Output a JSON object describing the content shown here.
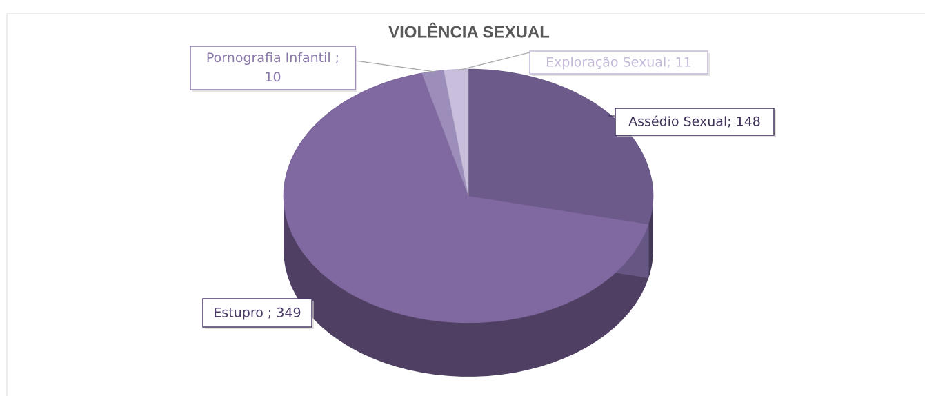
{
  "chart_data": {
    "type": "pie",
    "title": "VIOLÊNCIA SEXUAL",
    "categories": [
      "Assédio Sexual;",
      "Estupro ;",
      "Pornografia Infantil ;",
      "Exploração Sexual;"
    ],
    "values": [
      148,
      349,
      10,
      11
    ],
    "value_labels": [
      "148",
      "349",
      "10",
      "11"
    ],
    "colors": [
      "#6b5a8a",
      "#8068a0",
      "#9d8dbb",
      "#c9bfdc"
    ],
    "label_colors": [
      "#3f3158",
      "#4a3a66",
      "#8a78aa",
      "#c3b8d8"
    ]
  }
}
